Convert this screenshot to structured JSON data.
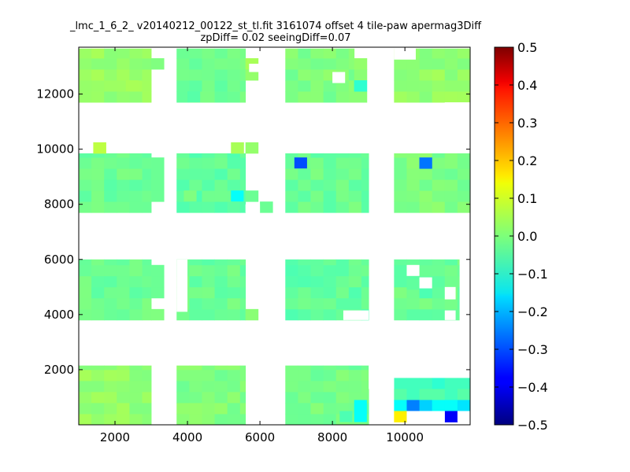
{
  "chart_data": {
    "type": "heatmap",
    "title": "_lmc_1_6_2_ v20140212_00122_st_tl.fit 3161074 offset 4 tile-paw apermag3Diff",
    "subtitle": "zpDiff= 0.02 seeingDiff=0.07",
    "xlabel": "",
    "ylabel": "",
    "xlim": [
      1000,
      11800
    ],
    "ylim": [
      0,
      13700
    ],
    "x_ticks": [
      2000,
      4000,
      6000,
      8000,
      10000
    ],
    "x_tick_labels": [
      "2000",
      "4000",
      "6000",
      "8000",
      "10000"
    ],
    "y_ticks": [
      2000,
      4000,
      6000,
      8000,
      10000,
      12000
    ],
    "y_tick_labels": [
      "2000",
      "4000",
      "6000",
      "8000",
      "10000",
      "12000"
    ],
    "colorbar": {
      "colormap": "jet",
      "vmin": -0.5,
      "vmax": 0.5,
      "ticks": [
        0.5,
        0.4,
        0.3,
        0.2,
        0.1,
        0.0,
        -0.1,
        -0.2,
        -0.3,
        -0.4,
        -0.5
      ],
      "tick_labels": [
        "0.5",
        "0.4",
        "0.3",
        "0.2",
        "0.1",
        "0.0",
        "−0.1",
        "−0.2",
        "−0.3",
        "−0.4",
        "−0.5"
      ]
    },
    "grid": false,
    "cell_size": [
      350,
      400
    ],
    "base_value": -0.02,
    "tile_blocks": [
      {
        "x": [
          1000,
          3000
        ],
        "y": [
          11700,
          13650
        ],
        "value": 0.02
      },
      {
        "x": [
          3700,
          5600
        ],
        "y": [
          11700,
          13650
        ],
        "value": -0.02
      },
      {
        "x": [
          6700,
          8600
        ],
        "y": [
          11700,
          13650
        ],
        "value": 0.0
      },
      {
        "x": [
          9700,
          11800
        ],
        "y": [
          11700,
          13650
        ],
        "value": 0.02
      },
      {
        "x": [
          1000,
          3000
        ],
        "y": [
          7700,
          9850
        ],
        "value": -0.02
      },
      {
        "x": [
          3700,
          5600
        ],
        "y": [
          7700,
          9850
        ],
        "value": -0.03
      },
      {
        "x": [
          6700,
          9000
        ],
        "y": [
          7700,
          9850
        ],
        "value": -0.02
      },
      {
        "x": [
          9700,
          11800
        ],
        "y": [
          7700,
          9850
        ],
        "value": 0.0
      },
      {
        "x": [
          1000,
          3000
        ],
        "y": [
          3800,
          6000
        ],
        "value": -0.02
      },
      {
        "x": [
          3700,
          5600
        ],
        "y": [
          3800,
          6000
        ],
        "value": -0.02
      },
      {
        "x": [
          6700,
          9000
        ],
        "y": [
          3800,
          6000
        ],
        "value": -0.03
      },
      {
        "x": [
          9700,
          11500
        ],
        "y": [
          3800,
          6000
        ],
        "value": -0.02
      },
      {
        "x": [
          1000,
          3000
        ],
        "y": [
          0,
          2150
        ],
        "value": 0.02
      },
      {
        "x": [
          3700,
          5600
        ],
        "y": [
          0,
          2150
        ],
        "value": 0.0
      },
      {
        "x": [
          6700,
          9000
        ],
        "y": [
          0,
          2150
        ],
        "value": -0.01
      }
    ],
    "extra_cells": [
      {
        "x": 3000,
        "y": 12900,
        "value": 0.0
      },
      {
        "x": 3000,
        "y": 8100,
        "value": -0.02
      },
      {
        "x": 3000,
        "y": 8500,
        "value": -0.02
      },
      {
        "x": 3000,
        "y": 8900,
        "value": -0.02
      },
      {
        "x": 3000,
        "y": 9300,
        "value": -0.02
      },
      {
        "x": 3000,
        "y": 3800,
        "value": 0.0
      },
      {
        "x": 3000,
        "y": 4600,
        "value": -0.02
      },
      {
        "x": 3000,
        "y": 5000,
        "value": -0.02
      },
      {
        "x": 3000,
        "y": 5400,
        "value": -0.02
      },
      {
        "x": 5600,
        "y": 12900,
        "value": 0.04
      },
      {
        "x": 5600,
        "y": 12500,
        "value": 0.02
      },
      {
        "x": 5600,
        "y": 3800,
        "value": 0.01
      },
      {
        "x": 5600,
        "y": 8100,
        "value": -0.02
      },
      {
        "x": 6000,
        "y": 7700,
        "value": -0.02
      },
      {
        "x": 8600,
        "y": 11700,
        "value": 0.01
      },
      {
        "x": 8600,
        "y": 12100,
        "value": 0.01
      },
      {
        "x": 8600,
        "y": 12500,
        "value": 0.01
      },
      {
        "x": 8600,
        "y": 12900,
        "value": 0.02
      },
      {
        "x": 1400,
        "y": 9850,
        "value": 0.06
      },
      {
        "x": 5200,
        "y": 9850,
        "value": 0.04
      },
      {
        "x": 5600,
        "y": 9850,
        "value": 0.02
      },
      {
        "x": 9700,
        "y": 1300,
        "value": -0.06
      },
      {
        "x": 10050,
        "y": 1300,
        "value": -0.06
      },
      {
        "x": 10400,
        "y": 1300,
        "value": -0.06
      },
      {
        "x": 10750,
        "y": 1300,
        "value": -0.08
      },
      {
        "x": 11100,
        "y": 1300,
        "value": -0.06
      },
      {
        "x": 11450,
        "y": 1300,
        "value": -0.06
      },
      {
        "x": 9700,
        "y": 900,
        "value": -0.04
      },
      {
        "x": 10050,
        "y": 900,
        "value": -0.06
      },
      {
        "x": 10400,
        "y": 900,
        "value": -0.04
      },
      {
        "x": 10750,
        "y": 900,
        "value": -0.04
      },
      {
        "x": 11100,
        "y": 900,
        "value": -0.06
      },
      {
        "x": 11450,
        "y": 900,
        "value": -0.04
      },
      {
        "x": 9700,
        "y": 500,
        "value": -0.12
      },
      {
        "x": 10050,
        "y": 500,
        "value": -0.25
      },
      {
        "x": 10400,
        "y": 500,
        "value": -0.17
      },
      {
        "x": 10750,
        "y": 500,
        "value": -0.12
      },
      {
        "x": 11100,
        "y": 500,
        "value": -0.12
      },
      {
        "x": 11450,
        "y": 500,
        "value": -0.15
      },
      {
        "x": 9700,
        "y": 100,
        "value": 0.14
      },
      {
        "x": 11100,
        "y": 100,
        "value": -0.38
      }
    ],
    "cell_overrides": [
      {
        "x": 8600,
        "y": 12100,
        "value": -0.08
      },
      {
        "x": 3900,
        "y": 8100,
        "value": 0.0
      },
      {
        "x": 2300,
        "y": 12100,
        "value": 0.04
      },
      {
        "x": 8600,
        "y": 500,
        "value": -0.12
      },
      {
        "x": 8600,
        "y": 100,
        "value": -0.12
      },
      {
        "x": 8200,
        "y": 100,
        "value": -0.05
      },
      {
        "x": 6950,
        "y": 9300,
        "value": -0.3
      },
      {
        "x": 10400,
        "y": 9300,
        "value": -0.26
      },
      {
        "x": 5200,
        "y": 8100,
        "value": -0.12
      },
      {
        "x": 4000,
        "y": 11700,
        "value": -0.04
      },
      {
        "x": 10050,
        "y": 4900,
        "value": -0.03
      },
      {
        "x": 10400,
        "y": 4600,
        "value": -0.05
      }
    ],
    "holes": [
      {
        "x": 5700,
        "y": 12800,
        "w": 300,
        "h": 300
      },
      {
        "x": 8000,
        "y": 12400,
        "w": 350,
        "h": 400
      },
      {
        "x": 9700,
        "y": 13250,
        "w": 600,
        "h": 450
      },
      {
        "x": 11100,
        "y": 11000,
        "w": 700,
        "h": 700
      },
      {
        "x": 5600,
        "y": 7700,
        "w": 400,
        "h": 300
      },
      {
        "x": 9700,
        "y": 10100,
        "w": 700,
        "h": 450
      },
      {
        "x": 10050,
        "y": 5400,
        "w": 350,
        "h": 400
      },
      {
        "x": 10400,
        "y": 4950,
        "w": 350,
        "h": 400
      },
      {
        "x": 11100,
        "y": 4550,
        "w": 300,
        "h": 450
      },
      {
        "x": 11100,
        "y": 3800,
        "w": 300,
        "h": 350
      },
      {
        "x": 9700,
        "y": 3800,
        "w": 0,
        "h": 0
      },
      {
        "x": 3250,
        "y": 3800,
        "w": 0,
        "h": 0
      },
      {
        "x": 3700,
        "y": 4100,
        "w": 300,
        "h": 1900
      },
      {
        "x": 8300,
        "y": 3800,
        "w": 700,
        "h": 350
      },
      {
        "x": 9000,
        "y": 9850,
        "w": 0,
        "h": 0
      },
      {
        "x": 11450,
        "y": 100,
        "w": 350,
        "h": 400
      },
      {
        "x": 10050,
        "y": 100,
        "w": 1050,
        "h": 400
      },
      {
        "x": 9000,
        "y": 1300,
        "w": 700,
        "h": 850
      },
      {
        "x": 9000,
        "y": 0,
        "w": 0,
        "h": 0
      }
    ]
  }
}
